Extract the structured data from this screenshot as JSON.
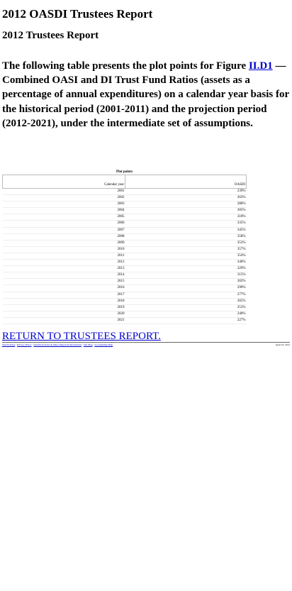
{
  "doc_title": "2012 OASDI Trustees Report",
  "report_title": "2012 Trustees Report",
  "intro": {
    "before_link": "The following table presents the plot points for Figure ",
    "link_text": "II.D1",
    "after_link": " — Combined OASI and DI Trust Fund Ratios (assets as a percentage of annual expenditures) on a calendar year basis for the historical period (2001-2011) and the projection period (2012-2021), under the intermediate set of assumptions."
  },
  "table": {
    "caption": "Plot points",
    "header_year": "Calendar year",
    "header_value": "OASDI",
    "rows": [
      {
        "year": "2001",
        "value": "239%"
      },
      {
        "year": "2002",
        "value": "263%"
      },
      {
        "year": "2003",
        "value": "288%"
      },
      {
        "year": "2004",
        "value": "305%"
      },
      {
        "year": "2005",
        "value": "318%"
      },
      {
        "year": "2006",
        "value": "335%"
      },
      {
        "year": "2007",
        "value": "345%"
      },
      {
        "year": "2008",
        "value": "358%"
      },
      {
        "year": "2009",
        "value": "353%"
      },
      {
        "year": "2010",
        "value": "357%"
      },
      {
        "year": "2011",
        "value": "354%"
      },
      {
        "year": "2012",
        "value": "340%"
      },
      {
        "year": "2013",
        "value": "329%"
      },
      {
        "year": "2014",
        "value": "315%"
      },
      {
        "year": "2015",
        "value": "302%"
      },
      {
        "year": "2016",
        "value": "290%"
      },
      {
        "year": "2017",
        "value": "277%"
      },
      {
        "year": "2018",
        "value": "265%"
      },
      {
        "year": "2019",
        "value": "253%"
      },
      {
        "year": "2020",
        "value": "240%"
      },
      {
        "year": "2021",
        "value": "227%"
      }
    ]
  },
  "return_link": "RETURN TO TRUSTEES REPORT.",
  "footer": {
    "links": [
      "Web Policies",
      "Privacy Policy",
      "Website Policies & Other Important Information",
      "Site Map",
      "Accessibility Help"
    ],
    "date": "April 23, 2012"
  }
}
